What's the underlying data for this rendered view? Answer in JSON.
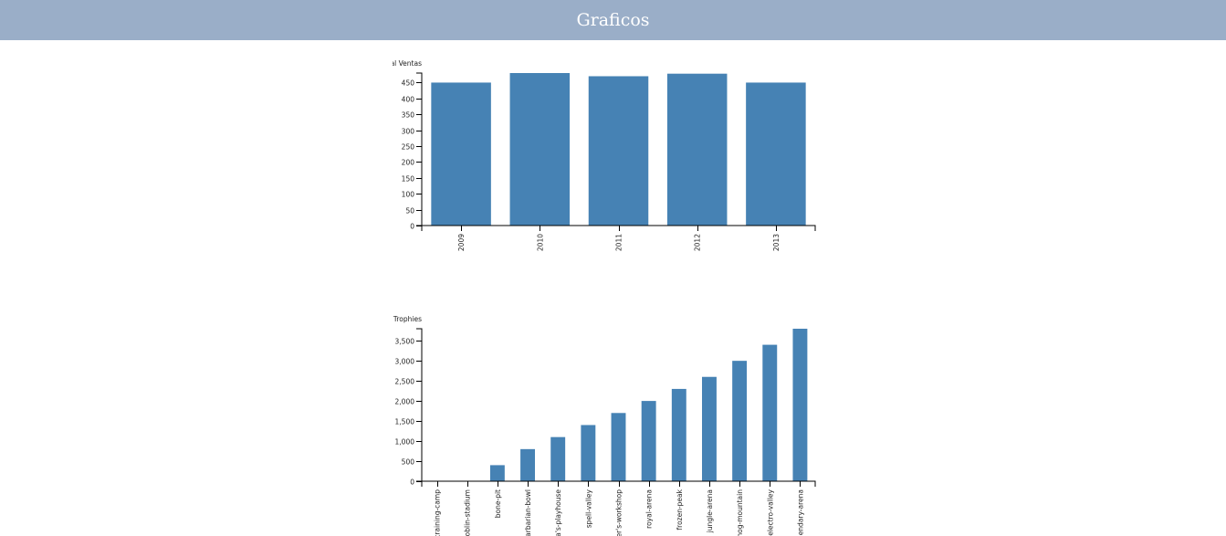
{
  "header": {
    "title": "Graficos"
  },
  "colors": {
    "header_bg": "#9aaec8",
    "bar": "#4682b4"
  },
  "chart_data": [
    {
      "type": "bar",
      "ylabel": "Total Ventas",
      "categories": [
        "2009",
        "2010",
        "2011",
        "2012",
        "2013"
      ],
      "values": [
        450,
        480,
        470,
        478,
        450
      ],
      "ylim": [
        0,
        480
      ],
      "yticks": [
        0,
        50,
        100,
        150,
        200,
        250,
        300,
        350,
        400,
        450
      ],
      "grid": false
    },
    {
      "type": "bar",
      "ylabel": "Trophies",
      "categories": [
        "training-camp",
        "goblin-stadium",
        "bone-pit",
        "barbarian-bowl",
        "pekka's-playhouse",
        "spell-valley",
        "builder's-workshop",
        "royal-arena",
        "frozen-peak",
        "jungle-arena",
        "hog-mountain",
        "electro-valley",
        "legendary-arena"
      ],
      "values": [
        0,
        0,
        400,
        800,
        1100,
        1400,
        1700,
        2000,
        2300,
        2600,
        3000,
        3400,
        3800
      ],
      "ylim": [
        0,
        3800
      ],
      "yticks": [
        0,
        500,
        1000,
        1500,
        2000,
        2500,
        3000,
        3500
      ],
      "grid": false
    }
  ]
}
